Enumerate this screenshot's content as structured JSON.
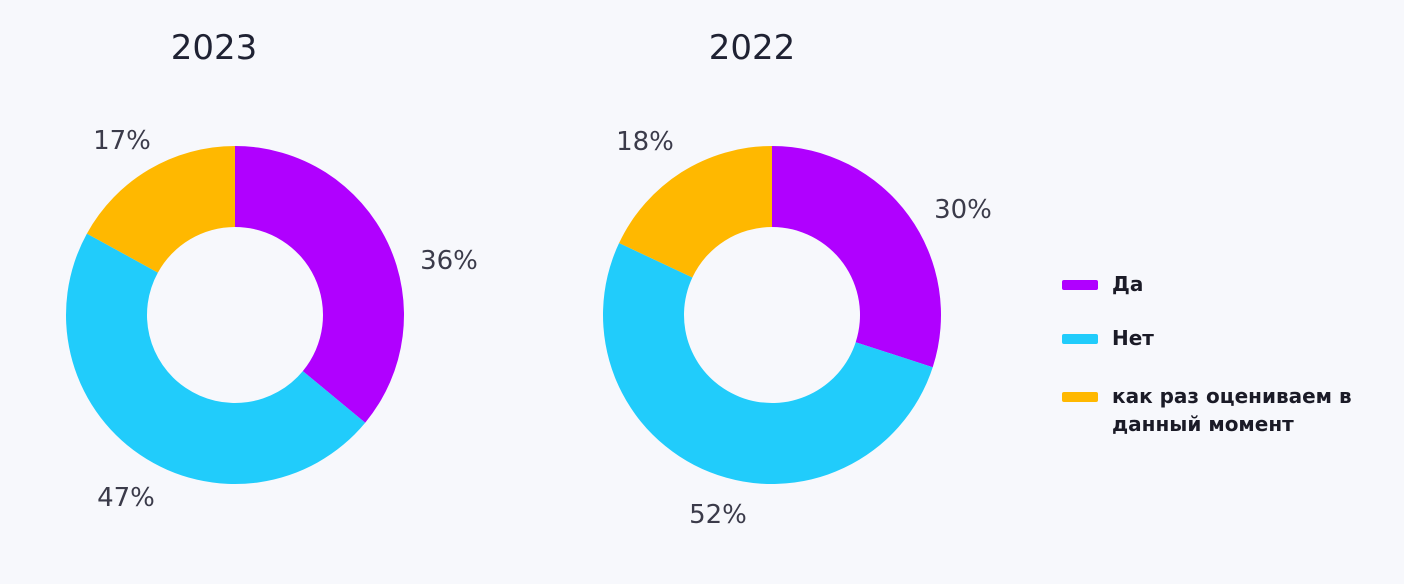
{
  "colors": {
    "yes": "#b000ff",
    "no": "#21ccfb",
    "evaluating": "#ffb800",
    "background": "#f7f8fc"
  },
  "legend": {
    "items": [
      {
        "label": "Да",
        "color": "#b000ff"
      },
      {
        "label": "Нет",
        "color": "#21ccfb"
      },
      {
        "label": "как раз оцениваем в данный момент",
        "color": "#ffb800"
      }
    ]
  },
  "chart_data": [
    {
      "type": "pie",
      "title": "2023",
      "categories": [
        "Да",
        "Нет",
        "как раз оцениваем в данный момент"
      ],
      "values": [
        36,
        47,
        17
      ],
      "value_labels": [
        "36%",
        "47%",
        "17%"
      ],
      "colors": [
        "#b000ff",
        "#21ccfb",
        "#ffb800"
      ]
    },
    {
      "type": "pie",
      "title": "2022",
      "categories": [
        "Да",
        "Нет",
        "как раз оцениваем в данный момент"
      ],
      "values": [
        30,
        52,
        18
      ],
      "value_labels": [
        "30%",
        "52%",
        "18%"
      ],
      "colors": [
        "#b000ff",
        "#21ccfb",
        "#ffb800"
      ]
    }
  ]
}
